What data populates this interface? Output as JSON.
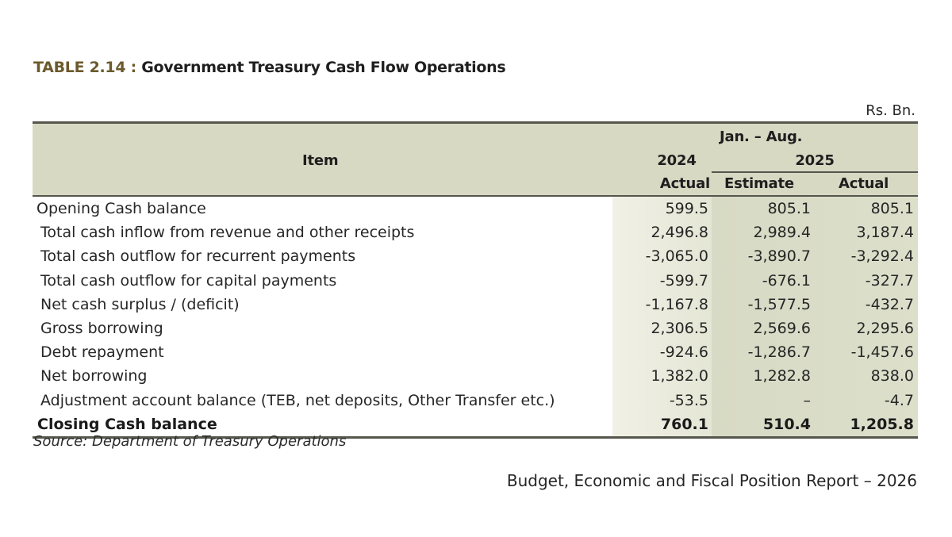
{
  "document": {
    "title_number": "TABLE 2.14 :",
    "title_text": "Government  Treasury Cash Flow Operations",
    "units": "Rs. Bn.",
    "source": "Source: Department of Treasury Operations",
    "footer": "Budget, Economic and Fiscal Position Report – 2026"
  },
  "table": {
    "headers": {
      "item": "Item",
      "period": "Jan. – Aug.",
      "year_2024": "2024",
      "year_2025": "2025",
      "col_2024_actual": "Actual",
      "col_2025_estimate": "Estimate",
      "col_2025_actual": "Actual"
    },
    "rows": [
      {
        "item": "Opening Cash balance",
        "actual_2024": "599.5",
        "estimate_2025": "805.1",
        "actual_2025": "805.1"
      },
      {
        "item": "Total cash inflow from revenue and other receipts",
        "actual_2024": "2,496.8",
        "estimate_2025": "2,989.4",
        "actual_2025": "3,187.4"
      },
      {
        "item": "Total cash outflow for recurrent payments",
        "actual_2024": "-3,065.0",
        "estimate_2025": "-3,890.7",
        "actual_2025": "-3,292.4"
      },
      {
        "item": "Total cash outflow for capital payments",
        "actual_2024": "-599.7",
        "estimate_2025": "-676.1",
        "actual_2025": "-327.7"
      },
      {
        "item": "Net cash surplus / (deficit)",
        "actual_2024": "-1,167.8",
        "estimate_2025": "-1,577.5",
        "actual_2025": "-432.7"
      },
      {
        "item": "Gross borrowing",
        "actual_2024": "2,306.5",
        "estimate_2025": "2,569.6",
        "actual_2025": "2,295.6"
      },
      {
        "item": "Debt repayment",
        "actual_2024": "-924.6",
        "estimate_2025": "-1,286.7",
        "actual_2025": "-1,457.6"
      },
      {
        "item": "Net borrowing",
        "actual_2024": "1,382.0",
        "estimate_2025": "1,282.8",
        "actual_2025": "838.0"
      },
      {
        "item": "Adjustment account balance (TEB, net deposits, Other Transfer etc.)",
        "actual_2024": "-53.5",
        "estimate_2025": "–",
        "actual_2025": "-4.7"
      },
      {
        "item": "Closing Cash balance",
        "actual_2024": "760.1",
        "estimate_2025": "510.4",
        "actual_2025": "1,205.8"
      }
    ]
  },
  "colors": {
    "header_bg": "#d7d9c3",
    "col_2024_bg": "#eceadd",
    "col_2025_bg": "#d8dbc5",
    "rule": "#55564c",
    "title_accent": "#6b5a2c"
  }
}
